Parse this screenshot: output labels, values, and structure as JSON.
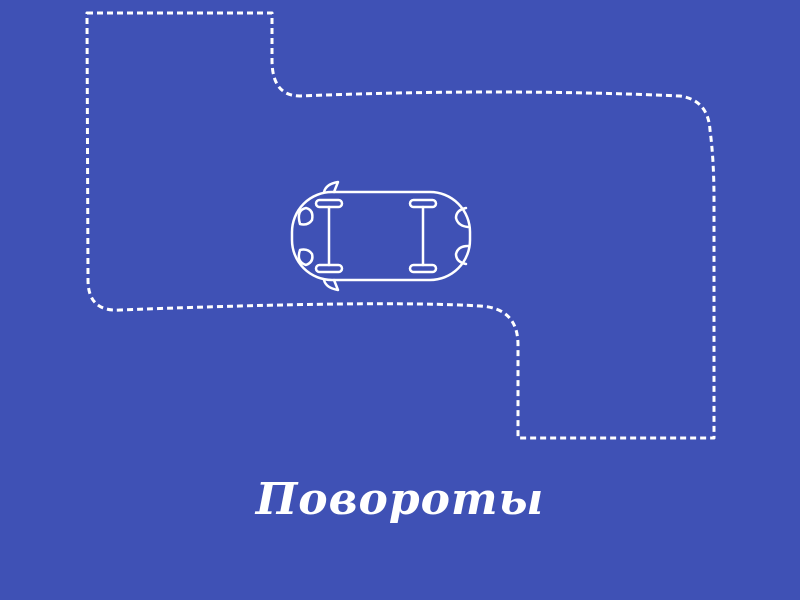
{
  "colors": {
    "background": "#3f51b5",
    "stroke": "#ffffff"
  },
  "icons": {
    "car": "car-top-view-icon",
    "track": "dashed-track-outline"
  },
  "caption": "Повороты"
}
